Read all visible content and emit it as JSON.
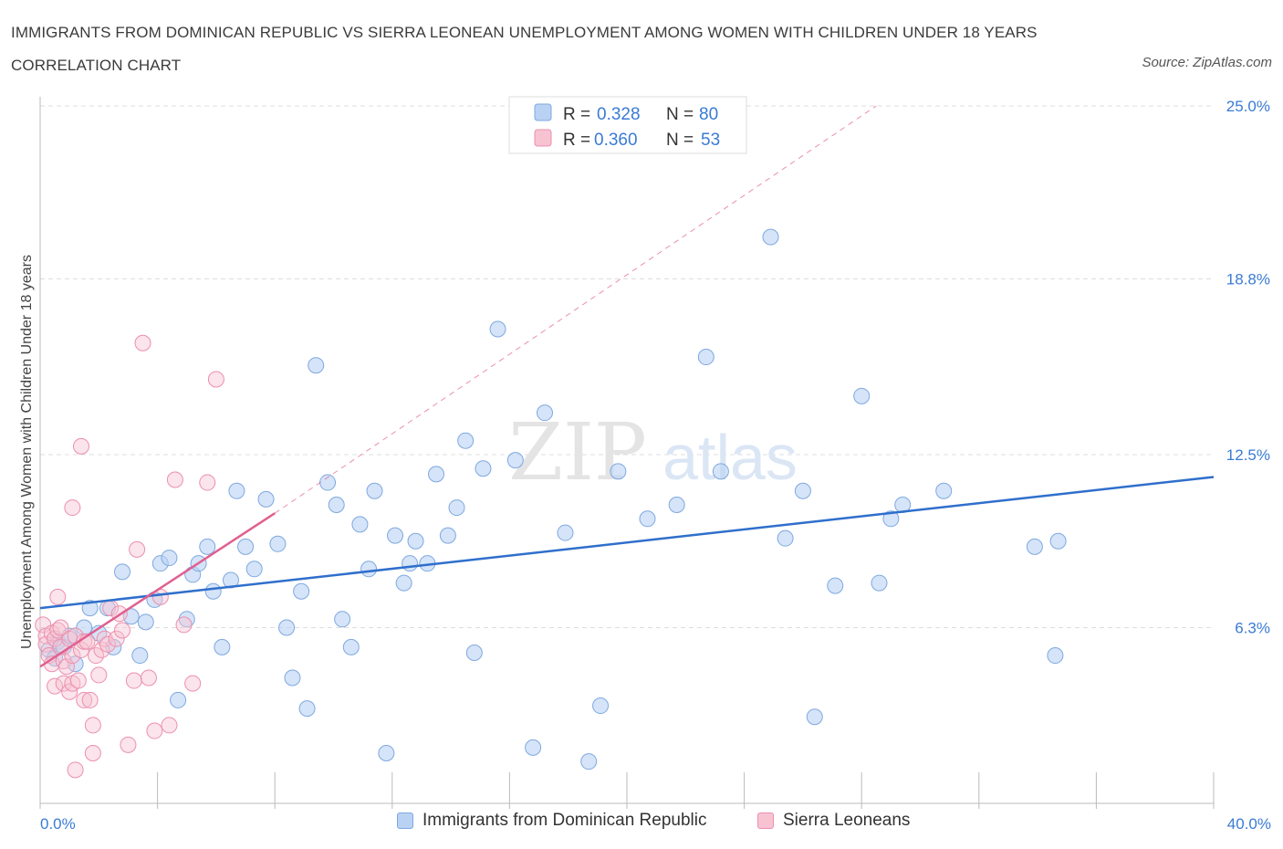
{
  "header": {
    "title": "IMMIGRANTS FROM DOMINICAN REPUBLIC VS SIERRA LEONEAN UNEMPLOYMENT AMONG WOMEN WITH CHILDREN UNDER 18 YEARS CORRELATION CHART",
    "source": "Source: ZipAtlas.com"
  },
  "watermark": {
    "zip": "ZIP",
    "atlas": "atlas"
  },
  "colors": {
    "blue_fill": "#b9d2f3",
    "blue_stroke": "#7fa8e0",
    "blue_line": "#2f6fcc",
    "pink_fill": "#f7c3d3",
    "pink_stroke": "#ec8fad",
    "pink_line": "#e0608f",
    "tick_text": "#3a7bd5",
    "grid": "#dddddd"
  },
  "legend": {
    "rows": [
      {
        "r_label": "R = ",
        "r_value": "0.328",
        "n_label": "N = ",
        "n_value": "80"
      },
      {
        "r_label": "R = ",
        "r_value": "0.360",
        "n_label": "N = ",
        "n_value": "53"
      }
    ]
  },
  "bottom_legend": [
    {
      "label": "Immigrants from Dominican Republic"
    },
    {
      "label": "Sierra Leoneans"
    }
  ],
  "chart_data": {
    "type": "scatter",
    "title": "IMMIGRANTS FROM DOMINICAN REPUBLIC VS SIERRA LEONEAN UNEMPLOYMENT AMONG WOMEN WITH CHILDREN UNDER 18 YEARS CORRELATION CHART",
    "xlabel": "",
    "ylabel": "Unemployment Among Women with Children Under 18 years",
    "xlim": [
      0,
      40
    ],
    "ylim": [
      0,
      25
    ],
    "x_tick_labels": [
      {
        "value": 0,
        "label": "0.0%"
      },
      {
        "value": 40,
        "label": "40.0%"
      }
    ],
    "y_tick_labels": [
      {
        "value": 6.3,
        "label": "6.3%"
      },
      {
        "value": 12.5,
        "label": "12.5%"
      },
      {
        "value": 18.8,
        "label": "18.8%"
      },
      {
        "value": 25.0,
        "label": "25.0%"
      }
    ],
    "grid": true,
    "legend_position": "top-center",
    "series": [
      {
        "name": "Immigrants from Dominican Republic",
        "R": 0.328,
        "N": 80,
        "trend": {
          "x": [
            0,
            40
          ],
          "y": [
            7.0,
            11.7
          ],
          "style": "solid"
        },
        "points": [
          [
            0.3,
            5.5
          ],
          [
            0.5,
            5.2
          ],
          [
            0.6,
            5.8
          ],
          [
            0.8,
            5.6
          ],
          [
            1.0,
            6.0
          ],
          [
            1.2,
            5.0
          ],
          [
            1.5,
            6.3
          ],
          [
            1.7,
            7.0
          ],
          [
            2.0,
            6.1
          ],
          [
            2.3,
            7.0
          ],
          [
            2.5,
            5.6
          ],
          [
            2.8,
            8.3
          ],
          [
            3.1,
            6.7
          ],
          [
            3.4,
            5.3
          ],
          [
            3.6,
            6.5
          ],
          [
            3.9,
            7.3
          ],
          [
            4.1,
            8.6
          ],
          [
            4.4,
            8.8
          ],
          [
            4.7,
            3.7
          ],
          [
            5.0,
            6.6
          ],
          [
            5.2,
            8.2
          ],
          [
            5.4,
            8.6
          ],
          [
            5.7,
            9.2
          ],
          [
            5.9,
            7.6
          ],
          [
            6.2,
            5.6
          ],
          [
            6.5,
            8.0
          ],
          [
            6.7,
            11.2
          ],
          [
            7.0,
            9.2
          ],
          [
            7.3,
            8.4
          ],
          [
            7.7,
            10.9
          ],
          [
            8.1,
            9.3
          ],
          [
            8.4,
            6.3
          ],
          [
            8.6,
            4.5
          ],
          [
            8.9,
            7.6
          ],
          [
            9.1,
            3.4
          ],
          [
            9.4,
            15.7
          ],
          [
            9.8,
            11.5
          ],
          [
            10.1,
            10.7
          ],
          [
            10.3,
            6.6
          ],
          [
            10.6,
            5.6
          ],
          [
            10.9,
            10.0
          ],
          [
            11.2,
            8.4
          ],
          [
            11.4,
            11.2
          ],
          [
            11.8,
            1.8
          ],
          [
            12.1,
            9.6
          ],
          [
            12.4,
            7.9
          ],
          [
            12.6,
            8.6
          ],
          [
            12.8,
            9.4
          ],
          [
            13.2,
            8.6
          ],
          [
            13.5,
            11.8
          ],
          [
            13.9,
            9.6
          ],
          [
            14.2,
            10.6
          ],
          [
            14.5,
            13.0
          ],
          [
            14.8,
            5.4
          ],
          [
            15.1,
            12.0
          ],
          [
            15.6,
            17.0
          ],
          [
            16.2,
            12.3
          ],
          [
            16.8,
            2.0
          ],
          [
            17.2,
            14.0
          ],
          [
            17.9,
            9.7
          ],
          [
            18.7,
            1.5
          ],
          [
            19.1,
            3.5
          ],
          [
            19.7,
            11.9
          ],
          [
            20.7,
            10.2
          ],
          [
            21.7,
            10.7
          ],
          [
            22.7,
            16.0
          ],
          [
            23.2,
            11.9
          ],
          [
            24.9,
            20.3
          ],
          [
            25.4,
            9.5
          ],
          [
            26.0,
            11.2
          ],
          [
            26.4,
            3.1
          ],
          [
            27.1,
            7.8
          ],
          [
            28.0,
            14.6
          ],
          [
            28.6,
            7.9
          ],
          [
            29.0,
            10.2
          ],
          [
            29.4,
            10.7
          ],
          [
            30.8,
            11.2
          ],
          [
            33.9,
            9.2
          ],
          [
            34.6,
            5.3
          ],
          [
            34.7,
            9.4
          ]
        ]
      },
      {
        "name": "Sierra Leoneans",
        "R": 0.36,
        "N": 53,
        "trend": {
          "x": [
            0,
            8.0
          ],
          "y": [
            4.9,
            10.4
          ],
          "style": "solid",
          "extended": {
            "x": [
              8.0,
              28.5
            ],
            "y": [
              10.4,
              25.0
            ],
            "style": "dashed"
          }
        },
        "points": [
          [
            0.1,
            6.4
          ],
          [
            0.2,
            6.0
          ],
          [
            0.2,
            5.7
          ],
          [
            0.3,
            5.3
          ],
          [
            0.4,
            6.1
          ],
          [
            0.4,
            5.0
          ],
          [
            0.5,
            4.2
          ],
          [
            0.5,
            5.9
          ],
          [
            0.6,
            7.4
          ],
          [
            0.6,
            6.2
          ],
          [
            0.7,
            5.6
          ],
          [
            0.8,
            4.3
          ],
          [
            0.8,
            5.1
          ],
          [
            0.9,
            4.9
          ],
          [
            1.0,
            5.9
          ],
          [
            1.0,
            4.0
          ],
          [
            1.1,
            5.3
          ],
          [
            1.1,
            4.3
          ],
          [
            1.2,
            1.2
          ],
          [
            1.2,
            6.0
          ],
          [
            1.3,
            4.4
          ],
          [
            1.4,
            5.5
          ],
          [
            1.5,
            3.7
          ],
          [
            1.5,
            5.8
          ],
          [
            1.6,
            5.8
          ],
          [
            1.7,
            3.7
          ],
          [
            1.8,
            2.8
          ],
          [
            1.8,
            1.8
          ],
          [
            1.9,
            5.3
          ],
          [
            2.0,
            4.6
          ],
          [
            2.1,
            5.5
          ],
          [
            2.2,
            5.9
          ],
          [
            2.3,
            5.7
          ],
          [
            2.4,
            7.0
          ],
          [
            2.6,
            5.9
          ],
          [
            2.8,
            6.2
          ],
          [
            3.0,
            2.1
          ],
          [
            3.2,
            4.4
          ],
          [
            3.3,
            9.1
          ],
          [
            3.5,
            16.5
          ],
          [
            3.7,
            4.5
          ],
          [
            3.9,
            2.6
          ],
          [
            4.1,
            7.4
          ],
          [
            4.4,
            2.8
          ],
          [
            4.6,
            11.6
          ],
          [
            4.9,
            6.4
          ],
          [
            5.2,
            4.3
          ],
          [
            5.7,
            11.5
          ],
          [
            6.0,
            15.2
          ],
          [
            1.4,
            12.8
          ],
          [
            1.1,
            10.6
          ],
          [
            0.7,
            6.3
          ],
          [
            2.7,
            6.8
          ]
        ]
      }
    ]
  }
}
